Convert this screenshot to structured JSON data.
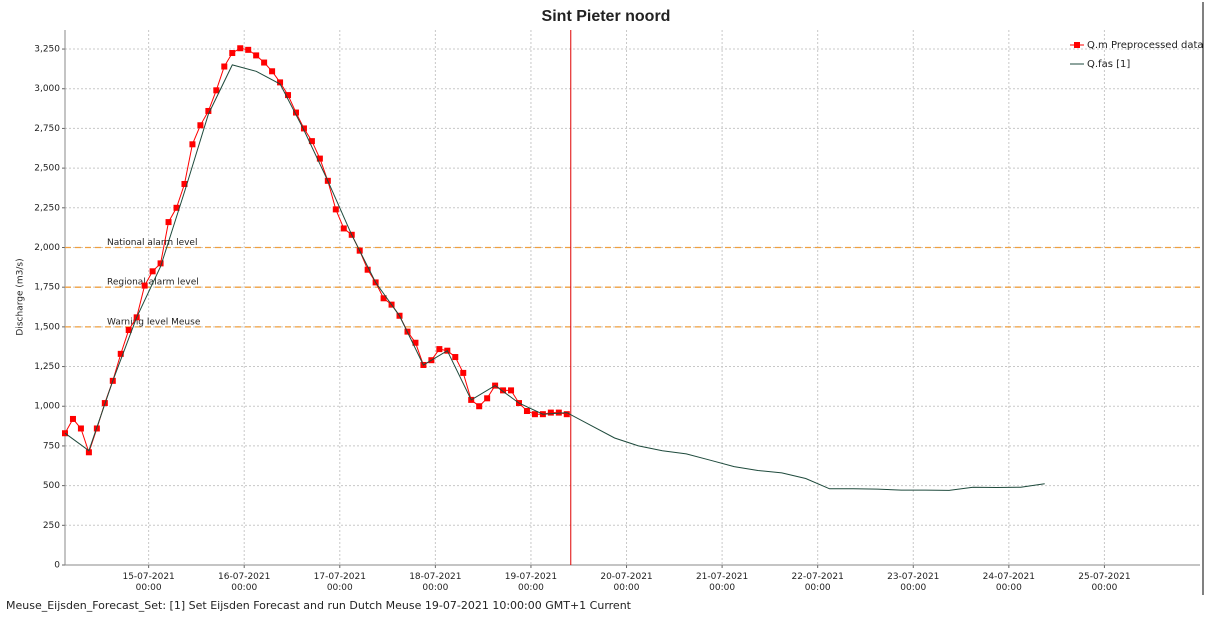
{
  "chart_data": {
    "type": "line",
    "title": "Sint Pieter noord",
    "y_label": "Discharge (m3/s)",
    "footer": "Meuse_Eijsden_Forecast_Set: [1] Set Eijsden Forecast and run Dutch Meuse 19-07-2021 10:00:00 GMT+1 Current",
    "xlim": [
      "14-07-2021 03:00",
      "26-07-2021 00:00"
    ],
    "xticks": [
      "15-07-2021 00:00",
      "16-07-2021 00:00",
      "17-07-2021 00:00",
      "18-07-2021 00:00",
      "19-07-2021 00:00",
      "20-07-2021 00:00",
      "21-07-2021 00:00",
      "22-07-2021 00:00",
      "23-07-2021 00:00",
      "24-07-2021 00:00",
      "25-07-2021 00:00"
    ],
    "ylim": [
      0,
      3370
    ],
    "yticks": [
      0,
      250,
      500,
      750,
      {
        "value": 1000,
        "label": "1,000"
      },
      {
        "value": 1250,
        "label": "1,250"
      },
      {
        "value": 1500,
        "label": "1,500"
      },
      {
        "value": 1750,
        "label": "1,750"
      },
      {
        "value": 2000,
        "label": "2,000"
      },
      {
        "value": 2250,
        "label": "2,250"
      },
      {
        "value": 2500,
        "label": "2,500"
      },
      {
        "value": 2750,
        "label": "2,750"
      },
      {
        "value": 3000,
        "label": "3,000"
      },
      {
        "value": 3250,
        "label": "3,250"
      }
    ],
    "grid": true,
    "legend": "upper right",
    "thresholds": [
      {
        "name": "National alarm level",
        "value": 2000
      },
      {
        "name": "Regional alarm level",
        "value": 1750
      },
      {
        "name": "Warning level Meuse",
        "value": 1500
      }
    ],
    "threshold_color": "#f0a040",
    "vline": "19-07-2021 10:00",
    "vline_color": "#e00000",
    "series": [
      {
        "name": "Q.m Preprocessed data",
        "color": "#ff0000",
        "marker": "square",
        "x": [
          "14-07-2021 03:00",
          "14-07-2021 05:00",
          "14-07-2021 07:00",
          "14-07-2021 09:00",
          "14-07-2021 11:00",
          "14-07-2021 13:00",
          "14-07-2021 15:00",
          "14-07-2021 17:00",
          "14-07-2021 19:00",
          "14-07-2021 21:00",
          "14-07-2021 23:00",
          "15-07-2021 01:00",
          "15-07-2021 03:00",
          "15-07-2021 05:00",
          "15-07-2021 07:00",
          "15-07-2021 09:00",
          "15-07-2021 11:00",
          "15-07-2021 13:00",
          "15-07-2021 15:00",
          "15-07-2021 17:00",
          "15-07-2021 19:00",
          "15-07-2021 21:00",
          "15-07-2021 23:00",
          "16-07-2021 01:00",
          "16-07-2021 03:00",
          "16-07-2021 05:00",
          "16-07-2021 07:00",
          "16-07-2021 09:00",
          "16-07-2021 11:00",
          "16-07-2021 13:00",
          "16-07-2021 15:00",
          "16-07-2021 17:00",
          "16-07-2021 19:00",
          "16-07-2021 21:00",
          "16-07-2021 23:00",
          "17-07-2021 01:00",
          "17-07-2021 03:00",
          "17-07-2021 05:00",
          "17-07-2021 07:00",
          "17-07-2021 09:00",
          "17-07-2021 11:00",
          "17-07-2021 13:00",
          "17-07-2021 15:00",
          "17-07-2021 17:00",
          "17-07-2021 19:00",
          "17-07-2021 21:00",
          "17-07-2021 23:00",
          "18-07-2021 01:00",
          "18-07-2021 03:00",
          "18-07-2021 05:00",
          "18-07-2021 07:00",
          "18-07-2021 09:00",
          "18-07-2021 11:00",
          "18-07-2021 13:00",
          "18-07-2021 15:00",
          "18-07-2021 17:00",
          "18-07-2021 19:00",
          "18-07-2021 21:00",
          "18-07-2021 23:00",
          "19-07-2021 01:00",
          "19-07-2021 03:00",
          "19-07-2021 05:00",
          "19-07-2021 07:00",
          "19-07-2021 09:00"
        ],
        "values": [
          830,
          920,
          860,
          710,
          860,
          1020,
          1160,
          1330,
          1480,
          1560,
          1760,
          1850,
          1900,
          2160,
          2250,
          2400,
          2650,
          2770,
          2860,
          2990,
          3140,
          3225,
          3255,
          3245,
          3210,
          3165,
          3110,
          3040,
          2960,
          2850,
          2750,
          2670,
          2560,
          2420,
          2240,
          2120,
          2080,
          1980,
          1860,
          1780,
          1680,
          1640,
          1570,
          1470,
          1400,
          1260,
          1290,
          1360,
          1350,
          1310,
          1210,
          1040,
          1000,
          1050,
          1130,
          1100,
          1100,
          1020,
          970,
          950,
          950,
          960,
          960,
          950
        ]
      },
      {
        "name": "Q.fas [1]",
        "color": "#1e4a3c",
        "marker": "none",
        "x": [
          "14-07-2021 03:00",
          "14-07-2021 09:00",
          "14-07-2021 15:00",
          "14-07-2021 21:00",
          "15-07-2021 03:00",
          "15-07-2021 09:00",
          "15-07-2021 15:00",
          "15-07-2021 21:00",
          "16-07-2021 03:00",
          "16-07-2021 09:00",
          "16-07-2021 15:00",
          "16-07-2021 21:00",
          "17-07-2021 03:00",
          "17-07-2021 09:00",
          "17-07-2021 15:00",
          "17-07-2021 21:00",
          "18-07-2021 03:00",
          "18-07-2021 09:00",
          "18-07-2021 15:00",
          "18-07-2021 21:00",
          "19-07-2021 03:00",
          "19-07-2021 09:00",
          "19-07-2021 15:00",
          "19-07-2021 21:00",
          "20-07-2021 03:00",
          "20-07-2021 09:00",
          "20-07-2021 15:00",
          "20-07-2021 21:00",
          "21-07-2021 03:00",
          "21-07-2021 09:00",
          "21-07-2021 15:00",
          "21-07-2021 21:00",
          "22-07-2021 03:00",
          "22-07-2021 09:00",
          "22-07-2021 15:00",
          "22-07-2021 21:00",
          "23-07-2021 03:00",
          "23-07-2021 09:00",
          "23-07-2021 15:00",
          "23-07-2021 21:00",
          "24-07-2021 03:00",
          "24-07-2021 09:00"
        ],
        "values": [
          830,
          720,
          1160,
          1560,
          1880,
          2350,
          2840,
          3150,
          3110,
          3030,
          2740,
          2420,
          2080,
          1780,
          1570,
          1260,
          1350,
          1040,
          1130,
          1020,
          950,
          960,
          880,
          800,
          750,
          720,
          700,
          660,
          620,
          595,
          580,
          545,
          480,
          480,
          478,
          472,
          472,
          470,
          490,
          488,
          490,
          512
        ]
      }
    ]
  }
}
